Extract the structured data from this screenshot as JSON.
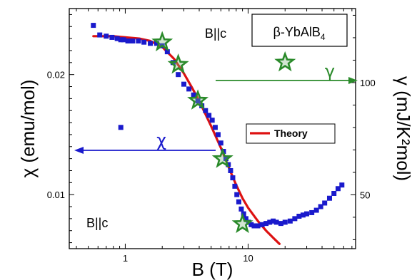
{
  "chart_data": {
    "type": "scatter",
    "xlabel": "B (T)",
    "ylabel_left": "χ (emu/mol)",
    "ylabel_right": "γ (mJ/K²mol)",
    "x_scale": "log",
    "xlim": [
      0.35,
      75
    ],
    "ylim_left": [
      0.0055,
      0.0255
    ],
    "ylim_right": [
      26,
      133
    ],
    "x_ticks": [
      1,
      10
    ],
    "y_ticks_left": [
      0.01,
      0.02
    ],
    "y_ticks_right": [
      50,
      100
    ],
    "title_box": {
      "prefix": "β-YbAlB",
      "sub": "4"
    },
    "annotations": [
      {
        "text": "B||c",
        "where": "top-center"
      },
      {
        "text": "B||c",
        "where": "bottom-left"
      }
    ],
    "arrows": [
      {
        "label": "χ",
        "axis": "left",
        "color": "#1a1acc"
      },
      {
        "label": "γ",
        "axis": "right",
        "color": "#2a8a2a"
      }
    ],
    "legend": {
      "label": "Theory",
      "color": "#dd1111",
      "placement": "center-right"
    },
    "series": [
      {
        "name": "χ",
        "axis": "left",
        "marker": "square",
        "color": "#1a1acc",
        "x": [
          0.55,
          0.62,
          0.7,
          0.78,
          0.86,
          0.92,
          0.97,
          1.05,
          1.15,
          1.28,
          1.42,
          1.6,
          1.8,
          2.0,
          2.2,
          2.45,
          2.7,
          3.0,
          3.3,
          3.6,
          3.9,
          4.2,
          4.5,
          4.8,
          5.1,
          5.4,
          5.7,
          6.0,
          6.3,
          6.6,
          6.9,
          7.2,
          7.5,
          7.8,
          8.1,
          8.4,
          8.8,
          9.2,
          9.6,
          10.1,
          10.6,
          11.2,
          12.0,
          13.0,
          14.0,
          15.0,
          16.0,
          17.0,
          18.5,
          20.0,
          22.0,
          24.0,
          26.0,
          28.0,
          30.0,
          33.0,
          36.0,
          39.0,
          42.0,
          46.0,
          50.0,
          54.0,
          58.0,
          0.92
        ],
        "y": [
          0.0241,
          0.0233,
          0.0232,
          0.0231,
          0.023,
          0.0229,
          0.0229,
          0.0228,
          0.0228,
          0.0228,
          0.0227,
          0.0226,
          0.0226,
          0.0224,
          0.0219,
          0.021,
          0.02,
          0.0192,
          0.0188,
          0.0183,
          0.0178,
          0.0174,
          0.017,
          0.0166,
          0.0162,
          0.0156,
          0.015,
          0.0143,
          0.0136,
          0.013,
          0.0125,
          0.012,
          0.0114,
          0.0107,
          0.01,
          0.0094,
          0.0088,
          0.0084,
          0.008,
          0.0077,
          0.0075,
          0.0074,
          0.0074,
          0.0075,
          0.0076,
          0.0077,
          0.0078,
          0.0077,
          0.0076,
          0.0077,
          0.0078,
          0.008,
          0.0082,
          0.0083,
          0.0084,
          0.0085,
          0.0087,
          0.009,
          0.0093,
          0.0097,
          0.0101,
          0.0105,
          0.0108,
          0.0156
        ]
      },
      {
        "name": "γ",
        "axis": "right",
        "marker": "star",
        "color": "#2a8a2a",
        "x": [
          2.0,
          2.7,
          3.9,
          6.2,
          9.0,
          20.0
        ],
        "y": [
          118,
          108,
          92,
          66,
          37,
          109
        ]
      },
      {
        "name": "Theory",
        "axis": "left",
        "type": "line",
        "color": "#dd1111",
        "x": [
          0.55,
          0.8,
          1.0,
          1.3,
          1.6,
          2.0,
          2.5,
          3.0,
          3.5,
          4.0,
          5.0,
          6.0,
          7.0,
          8.0,
          9.0,
          10.0,
          12.0,
          14.0,
          16.0,
          18.0
        ],
        "y": [
          0.0232,
          0.0232,
          0.0231,
          0.023,
          0.0228,
          0.0223,
          0.0213,
          0.0201,
          0.0189,
          0.0178,
          0.0157,
          0.0139,
          0.0122,
          0.0108,
          0.0097,
          0.0089,
          0.0078,
          0.007,
          0.0064,
          0.0059
        ]
      }
    ]
  }
}
